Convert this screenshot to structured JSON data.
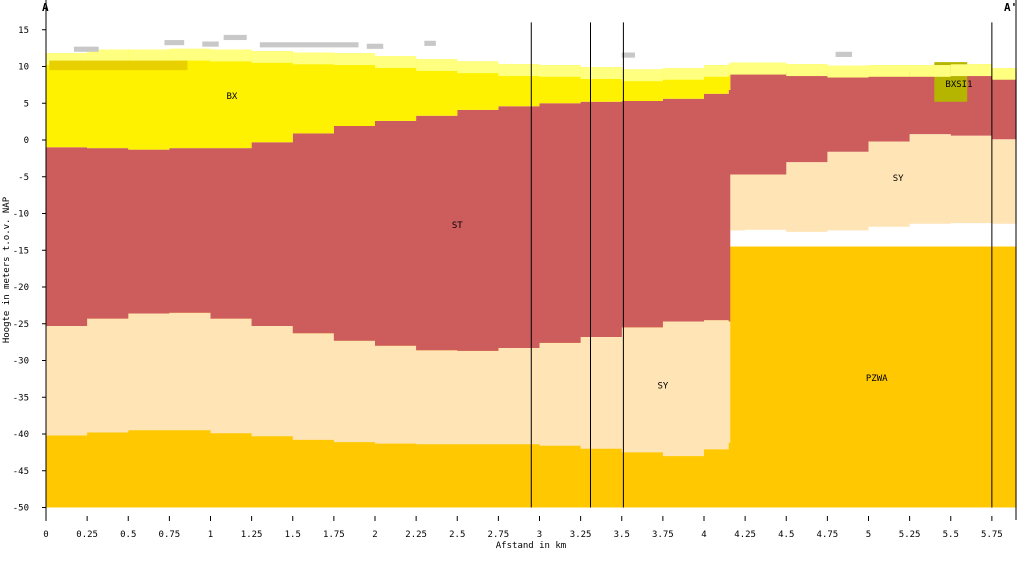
{
  "chart_data": {
    "type": "area",
    "title": "",
    "xlabel": "Afstand in km",
    "ylabel": "Hoogte in meters t.o.v. NAP",
    "xlim": [
      0,
      5.9
    ],
    "ylim": [
      -51,
      16
    ],
    "x_ticks": [
      0,
      0.25,
      0.5,
      0.75,
      1,
      1.25,
      1.5,
      1.75,
      2,
      2.25,
      2.5,
      2.75,
      3,
      3.25,
      3.5,
      3.75,
      4,
      4.25,
      4.5,
      4.75,
      5,
      5.25,
      5.5,
      5.75
    ],
    "x_tick_labels": [
      "0",
      "0.25",
      "0.5",
      "0.75",
      "1",
      "1.25",
      "1.5",
      "1.75",
      "2",
      "2.25",
      "2.5",
      "2.75",
      "3",
      "3.25",
      "3.5",
      "3.75",
      "4",
      "4.25",
      "4.5",
      "4.75",
      "5",
      "5.25",
      "5.5",
      "5.75"
    ],
    "y_ticks": [
      15,
      10,
      5,
      0,
      -5,
      -10,
      -15,
      -20,
      -25,
      -30,
      -35,
      -40,
      -45,
      -50
    ],
    "y_tick_labels": [
      "15",
      "10",
      "5",
      "0",
      "-5",
      "-10",
      "-15",
      "-20",
      "-25",
      "-30",
      "-35",
      "-40",
      "-45",
      "-50"
    ],
    "section_start_label": "A",
    "section_end_label": "A'",
    "bottom_depth": -50,
    "grid": false,
    "legend": "none",
    "borehole_lines_km": [
      0,
      2.95,
      3.31,
      3.51,
      5.75
    ],
    "colors": {
      "BX": "#fff200",
      "BX_top": "#ffff80",
      "BX_sub": "#e8d000",
      "ST": "#cd5c5c",
      "SY": "#ffe4b5",
      "PZWA": "#ffc800",
      "BXSI1": "#b5b500",
      "anthropogenic": "#c8c8c8"
    },
    "layers": [
      {
        "unit": "PZWA",
        "label": "PZWA",
        "label_at": [
          5.05,
          -32.8
        ],
        "x": [
          0,
          5.9
        ],
        "top": [
          -14.5,
          -14.5
        ],
        "bottom": [
          -50,
          -50
        ]
      },
      {
        "unit": "SY",
        "label": "SY",
        "label_at": [
          5.18,
          -5.6
        ],
        "x": [
          0,
          0.25,
          0.5,
          0.75,
          1,
          1.25,
          1.5,
          1.75,
          2,
          2.25,
          2.5,
          2.75,
          3,
          3.25,
          3.5,
          3.75,
          4,
          4.15,
          4.16,
          4.25,
          4.5,
          4.75,
          5,
          5.25,
          5.5,
          5.75,
          5.9
        ],
        "top": [
          -25.3,
          -24.3,
          -23.6,
          -23.5,
          -24.3,
          -25.3,
          -26.3,
          -27.3,
          -28.0,
          -28.6,
          -28.7,
          -28.3,
          -27.6,
          -26.8,
          -25.5,
          -24.7,
          -24.5,
          -24.7,
          -4.7,
          -4.6,
          -3.0,
          -1.6,
          -0.2,
          0.8,
          0.6,
          0.1,
          -0.1
        ],
        "bottom": [
          -40.2,
          -39.8,
          -39.5,
          -39.5,
          -39.9,
          -40.3,
          -40.8,
          -41.1,
          -41.3,
          -41.4,
          -41.4,
          -41.4,
          -41.6,
          -42.0,
          -42.5,
          -43.0,
          -42.1,
          -41.2,
          -12.3,
          -12.2,
          -12.5,
          -12.3,
          -11.8,
          -11.4,
          -11.3,
          -11.4,
          -11.7
        ]
      },
      {
        "unit": "ST",
        "label": "ST",
        "label_at": [
          2.5,
          -12.0
        ],
        "x": [
          0,
          0.25,
          0.5,
          0.75,
          1,
          1.25,
          1.5,
          1.75,
          2,
          2.25,
          2.5,
          2.75,
          3,
          3.25,
          3.5,
          3.75,
          4,
          4.15,
          4.16,
          4.5,
          4.75,
          5,
          5.25,
          5.5,
          5.75,
          5.9
        ],
        "top": [
          -1.0,
          -1.1,
          -1.3,
          -1.1,
          -1.1,
          -0.3,
          0.9,
          1.9,
          2.6,
          3.3,
          4.1,
          4.6,
          5.0,
          5.2,
          5.3,
          5.6,
          6.3,
          6.8,
          9.2,
          9.1,
          9.3,
          9.3,
          9.2,
          9.2,
          9.2,
          9.2
        ],
        "bottom": [
          -25.3,
          -24.3,
          -23.6,
          -23.5,
          -24.3,
          -25.3,
          -26.3,
          -27.3,
          -28.0,
          -28.6,
          -28.7,
          -28.3,
          -27.6,
          -26.8,
          -25.5,
          -24.7,
          -24.5,
          -24.7,
          -4.7,
          -3.0,
          -1.6,
          -0.2,
          0.8,
          0.6,
          0.1,
          -0.1
        ]
      },
      {
        "unit": "BX",
        "label": "BX",
        "label_at": [
          1.13,
          5.6
        ],
        "x": [
          0,
          0.25,
          0.5,
          0.75,
          1,
          1.25,
          1.5,
          1.75,
          2,
          2.25,
          2.5,
          2.75,
          3,
          3.25,
          3.5,
          3.75,
          4,
          4.15,
          4.16,
          4.5,
          4.75,
          5,
          5.25,
          5.5,
          5.75,
          5.9
        ],
        "top": [
          11.8,
          12.3,
          12.3,
          12.4,
          12.3,
          12.1,
          11.9,
          11.8,
          11.4,
          11.0,
          10.7,
          10.3,
          10.2,
          9.9,
          9.6,
          9.8,
          10.2,
          10.4,
          10.5,
          10.3,
          10.1,
          10.2,
          10.2,
          10.3,
          9.8,
          9.8
        ],
        "bottom": [
          -1.0,
          -1.1,
          -1.3,
          -1.1,
          -1.1,
          -0.3,
          0.9,
          1.9,
          2.6,
          3.3,
          4.1,
          4.6,
          5.0,
          5.2,
          5.3,
          5.6,
          6.3,
          6.8,
          9.2,
          9.1,
          9.3,
          9.3,
          9.2,
          9.2,
          9.2,
          9.2
        ]
      },
      {
        "unit": "BXSI1",
        "label": "BXSI1",
        "label_at": [
          5.55,
          7.2
        ],
        "x": [
          5.4,
          5.6
        ],
        "top": [
          10.6,
          9.5
        ],
        "bottom": [
          5.2,
          3.6
        ]
      }
    ]
  }
}
